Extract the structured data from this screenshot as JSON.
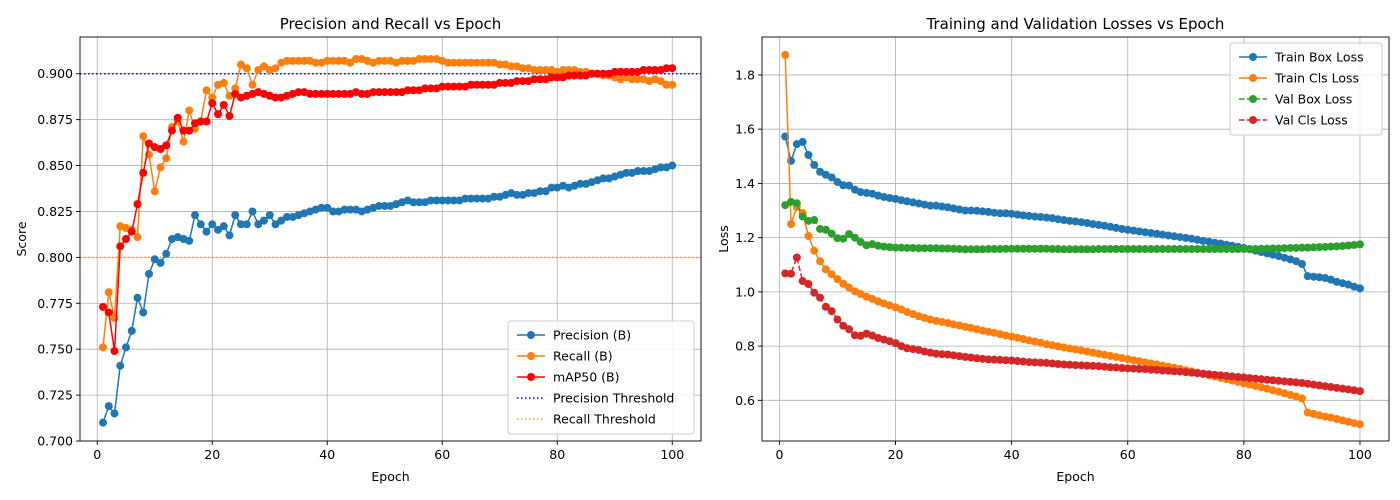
{
  "chart_data": [
    {
      "type": "line",
      "title": "Precision and Recall vs Epoch",
      "xlabel": "Epoch",
      "ylabel": "Score",
      "xlim": [
        -3,
        105
      ],
      "ylim": [
        0.7,
        0.92
      ],
      "xticks": [
        0,
        20,
        40,
        60,
        80,
        100
      ],
      "yticks": [
        0.7,
        0.725,
        0.75,
        0.775,
        0.8,
        0.825,
        0.85,
        0.875,
        0.9
      ],
      "ytick_labels": [
        "0.700",
        "0.725",
        "0.750",
        "0.775",
        "0.800",
        "0.825",
        "0.850",
        "0.875",
        "0.900"
      ],
      "grid": true,
      "legend_position": "lower-right",
      "epochs_start": 1,
      "series": [
        {
          "name": "Precision (B)",
          "color": "#1f77b4",
          "style": "solid-marker",
          "values": [
            0.71,
            0.719,
            0.715,
            0.741,
            0.751,
            0.76,
            0.778,
            0.77,
            0.791,
            0.799,
            0.797,
            0.802,
            0.81,
            0.811,
            0.81,
            0.809,
            0.823,
            0.818,
            0.814,
            0.818,
            0.815,
            0.817,
            0.812,
            0.823,
            0.818,
            0.818,
            0.825,
            0.818,
            0.82,
            0.823,
            0.818,
            0.82,
            0.822,
            0.822,
            0.823,
            0.824,
            0.825,
            0.826,
            0.827,
            0.827,
            0.825,
            0.825,
            0.826,
            0.826,
            0.826,
            0.825,
            0.826,
            0.827,
            0.828,
            0.828,
            0.828,
            0.829,
            0.83,
            0.831,
            0.83,
            0.83,
            0.83,
            0.831,
            0.831,
            0.831,
            0.831,
            0.831,
            0.831,
            0.832,
            0.832,
            0.832,
            0.832,
            0.832,
            0.833,
            0.833,
            0.834,
            0.835,
            0.834,
            0.834,
            0.835,
            0.835,
            0.836,
            0.836,
            0.838,
            0.838,
            0.839,
            0.838,
            0.839,
            0.84,
            0.84,
            0.841,
            0.842,
            0.843,
            0.843,
            0.844,
            0.845,
            0.846,
            0.846,
            0.847,
            0.847,
            0.847,
            0.848,
            0.849,
            0.849,
            0.85
          ]
        },
        {
          "name": "Recall (B)",
          "color": "#ff7f0e",
          "style": "solid-marker",
          "values": [
            0.751,
            0.781,
            0.767,
            0.817,
            0.816,
            0.815,
            0.811,
            0.866,
            0.856,
            0.836,
            0.849,
            0.854,
            0.871,
            0.874,
            0.863,
            0.88,
            0.87,
            0.874,
            0.891,
            0.887,
            0.894,
            0.895,
            0.888,
            0.892,
            0.905,
            0.903,
            0.894,
            0.902,
            0.904,
            0.902,
            0.903,
            0.906,
            0.907,
            0.907,
            0.907,
            0.907,
            0.907,
            0.906,
            0.906,
            0.907,
            0.907,
            0.907,
            0.907,
            0.906,
            0.908,
            0.908,
            0.907,
            0.906,
            0.907,
            0.907,
            0.907,
            0.906,
            0.907,
            0.907,
            0.907,
            0.908,
            0.908,
            0.908,
            0.908,
            0.907,
            0.906,
            0.906,
            0.906,
            0.906,
            0.906,
            0.906,
            0.906,
            0.906,
            0.906,
            0.905,
            0.905,
            0.904,
            0.904,
            0.903,
            0.903,
            0.902,
            0.902,
            0.902,
            0.902,
            0.901,
            0.902,
            0.902,
            0.902,
            0.901,
            0.901,
            0.9,
            0.9,
            0.899,
            0.899,
            0.898,
            0.897,
            0.898,
            0.897,
            0.897,
            0.897,
            0.896,
            0.897,
            0.896,
            0.894,
            0.894
          ]
        },
        {
          "name": "mAP50 (B)",
          "color": "#ff0000",
          "style": "solid-marker",
          "values": [
            0.773,
            0.77,
            0.749,
            0.806,
            0.81,
            0.814,
            0.829,
            0.846,
            0.862,
            0.86,
            0.859,
            0.861,
            0.869,
            0.876,
            0.869,
            0.869,
            0.873,
            0.874,
            0.874,
            0.884,
            0.878,
            0.883,
            0.877,
            0.889,
            0.887,
            0.888,
            0.889,
            0.89,
            0.889,
            0.888,
            0.887,
            0.887,
            0.888,
            0.889,
            0.89,
            0.89,
            0.889,
            0.889,
            0.889,
            0.889,
            0.889,
            0.889,
            0.889,
            0.889,
            0.89,
            0.889,
            0.889,
            0.89,
            0.89,
            0.89,
            0.89,
            0.89,
            0.89,
            0.891,
            0.891,
            0.891,
            0.892,
            0.892,
            0.892,
            0.893,
            0.893,
            0.893,
            0.893,
            0.893,
            0.894,
            0.894,
            0.894,
            0.894,
            0.894,
            0.895,
            0.895,
            0.895,
            0.896,
            0.896,
            0.896,
            0.897,
            0.897,
            0.897,
            0.898,
            0.898,
            0.898,
            0.899,
            0.899,
            0.899,
            0.899,
            0.9,
            0.9,
            0.9,
            0.9,
            0.901,
            0.901,
            0.901,
            0.901,
            0.901,
            0.902,
            0.902,
            0.902,
            0.902,
            0.903,
            0.903
          ]
        }
      ],
      "reference_lines": [
        {
          "name": "Precision Threshold",
          "y": 0.9,
          "color": "#0000ff",
          "style": "dotted"
        },
        {
          "name": "Recall Threshold",
          "y": 0.8,
          "color": "#ffa500",
          "style": "dotted"
        }
      ]
    },
    {
      "type": "line",
      "title": "Training and Validation Losses vs Epoch",
      "xlabel": "Epoch",
      "ylabel": "Loss",
      "xlim": [
        -3,
        105
      ],
      "ylim": [
        0.45,
        1.94
      ],
      "xticks": [
        0,
        20,
        40,
        60,
        80,
        100
      ],
      "yticks": [
        0.6,
        0.8,
        1.0,
        1.2,
        1.4,
        1.6,
        1.8
      ],
      "ytick_labels": [
        "0.6",
        "0.8",
        "1.0",
        "1.2",
        "1.4",
        "1.6",
        "1.8"
      ],
      "grid": true,
      "legend_position": "top-right",
      "epochs_start": 1,
      "series": [
        {
          "name": "Train Box Loss",
          "color": "#1f77b4",
          "style": "solid-marker",
          "values": [
            1.573,
            1.483,
            1.545,
            1.553,
            1.505,
            1.468,
            1.443,
            1.432,
            1.422,
            1.405,
            1.393,
            1.392,
            1.377,
            1.368,
            1.365,
            1.362,
            1.355,
            1.35,
            1.346,
            1.343,
            1.338,
            1.334,
            1.33,
            1.326,
            1.322,
            1.318,
            1.318,
            1.315,
            1.312,
            1.308,
            1.304,
            1.3,
            1.3,
            1.299,
            1.297,
            1.295,
            1.292,
            1.29,
            1.29,
            1.288,
            1.285,
            1.282,
            1.28,
            1.278,
            1.276,
            1.274,
            1.272,
            1.268,
            1.265,
            1.262,
            1.26,
            1.257,
            1.254,
            1.25,
            1.247,
            1.244,
            1.24,
            1.236,
            1.232,
            1.229,
            1.226,
            1.223,
            1.22,
            1.217,
            1.214,
            1.211,
            1.208,
            1.205,
            1.202,
            1.199,
            1.196,
            1.192,
            1.188,
            1.185,
            1.181,
            1.178,
            1.174,
            1.17,
            1.166,
            1.162,
            1.157,
            1.152,
            1.147,
            1.142,
            1.137,
            1.132,
            1.126,
            1.12,
            1.113,
            1.103,
            1.058,
            1.056,
            1.054,
            1.051,
            1.045,
            1.037,
            1.032,
            1.027,
            1.019,
            1.013
          ]
        },
        {
          "name": "Train Cls Loss",
          "color": "#ff7f0e",
          "style": "solid-marker",
          "values": [
            1.874,
            1.25,
            1.313,
            1.291,
            1.206,
            1.152,
            1.113,
            1.083,
            1.065,
            1.047,
            1.03,
            1.016,
            1.002,
            0.992,
            0.982,
            0.974,
            0.965,
            0.957,
            0.95,
            0.943,
            0.935,
            0.926,
            0.918,
            0.91,
            0.904,
            0.898,
            0.893,
            0.889,
            0.885,
            0.88,
            0.876,
            0.871,
            0.867,
            0.862,
            0.857,
            0.853,
            0.849,
            0.844,
            0.839,
            0.835,
            0.831,
            0.826,
            0.821,
            0.817,
            0.812,
            0.807,
            0.803,
            0.799,
            0.795,
            0.791,
            0.788,
            0.784,
            0.78,
            0.776,
            0.772,
            0.768,
            0.764,
            0.76,
            0.756,
            0.752,
            0.748,
            0.744,
            0.74,
            0.736,
            0.732,
            0.728,
            0.724,
            0.72,
            0.716,
            0.711,
            0.707,
            0.702,
            0.697,
            0.692,
            0.688,
            0.683,
            0.678,
            0.673,
            0.668,
            0.663,
            0.658,
            0.653,
            0.648,
            0.643,
            0.637,
            0.632,
            0.626,
            0.62,
            0.614,
            0.607,
            0.555,
            0.55,
            0.545,
            0.54,
            0.536,
            0.531,
            0.526,
            0.521,
            0.516,
            0.512
          ]
        },
        {
          "name": "Val Box Loss",
          "color": "#2ca02c",
          "style": "dashed-marker",
          "values": [
            1.32,
            1.332,
            1.327,
            1.278,
            1.262,
            1.265,
            1.232,
            1.229,
            1.215,
            1.198,
            1.196,
            1.213,
            1.2,
            1.184,
            1.172,
            1.176,
            1.17,
            1.167,
            1.165,
            1.163,
            1.163,
            1.162,
            1.162,
            1.161,
            1.161,
            1.161,
            1.161,
            1.16,
            1.16,
            1.159,
            1.158,
            1.157,
            1.157,
            1.157,
            1.157,
            1.158,
            1.158,
            1.158,
            1.159,
            1.159,
            1.159,
            1.159,
            1.159,
            1.159,
            1.159,
            1.159,
            1.158,
            1.158,
            1.157,
            1.157,
            1.157,
            1.157,
            1.157,
            1.157,
            1.158,
            1.158,
            1.158,
            1.158,
            1.158,
            1.158,
            1.158,
            1.158,
            1.158,
            1.158,
            1.158,
            1.158,
            1.158,
            1.158,
            1.158,
            1.158,
            1.158,
            1.158,
            1.158,
            1.158,
            1.158,
            1.158,
            1.158,
            1.158,
            1.158,
            1.158,
            1.158,
            1.158,
            1.159,
            1.159,
            1.16,
            1.16,
            1.161,
            1.162,
            1.162,
            1.163,
            1.163,
            1.164,
            1.165,
            1.166,
            1.167,
            1.168,
            1.169,
            1.171,
            1.173,
            1.175
          ]
        },
        {
          "name": "Val Cls Loss",
          "color": "#d62728",
          "style": "dashed-marker",
          "values": [
            1.068,
            1.067,
            1.127,
            1.04,
            1.029,
            0.997,
            0.979,
            0.945,
            0.929,
            0.898,
            0.875,
            0.862,
            0.84,
            0.838,
            0.846,
            0.839,
            0.83,
            0.824,
            0.818,
            0.811,
            0.8,
            0.792,
            0.789,
            0.786,
            0.78,
            0.776,
            0.772,
            0.77,
            0.769,
            0.766,
            0.763,
            0.76,
            0.758,
            0.755,
            0.753,
            0.751,
            0.75,
            0.749,
            0.748,
            0.747,
            0.745,
            0.743,
            0.741,
            0.74,
            0.739,
            0.738,
            0.736,
            0.734,
            0.732,
            0.731,
            0.73,
            0.729,
            0.728,
            0.727,
            0.726,
            0.724,
            0.722,
            0.721,
            0.719,
            0.718,
            0.717,
            0.716,
            0.715,
            0.713,
            0.712,
            0.71,
            0.709,
            0.707,
            0.706,
            0.704,
            0.702,
            0.7,
            0.698,
            0.696,
            0.694,
            0.692,
            0.69,
            0.688,
            0.686,
            0.684,
            0.682,
            0.68,
            0.678,
            0.676,
            0.674,
            0.672,
            0.67,
            0.668,
            0.666,
            0.664,
            0.661,
            0.658,
            0.655,
            0.652,
            0.649,
            0.646,
            0.643,
            0.64,
            0.637,
            0.634
          ]
        }
      ],
      "reference_lines": []
    }
  ]
}
